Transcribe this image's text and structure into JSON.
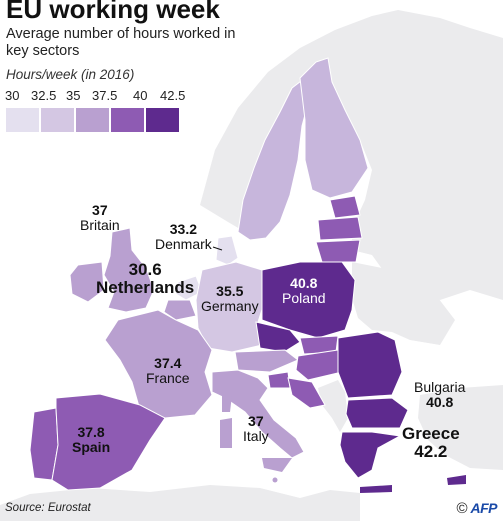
{
  "header": {
    "title": "EU working week",
    "subtitle": "Average number of hours worked in key sectors"
  },
  "legend": {
    "title": "Hours/week (in 2016)",
    "ticks": [
      "30",
      "32.5",
      "35",
      "37.5",
      "40",
      "42.5"
    ],
    "colors": [
      "#e4e0ef",
      "#d4c7e3",
      "#b9a0d0",
      "#8e5bb3",
      "#5e2a8e"
    ]
  },
  "map": {
    "sea_color": "#ffffff",
    "non_eu_color": "#ebebed"
  },
  "countries": {
    "britain": {
      "name": "Britain",
      "value": "37"
    },
    "denmark": {
      "name": "Denmark",
      "value": "33.2"
    },
    "netherlands": {
      "name": "Netherlands",
      "value": "30.6"
    },
    "germany": {
      "name": "Germany",
      "value": "35.5"
    },
    "poland": {
      "name": "Poland",
      "value": "40.8"
    },
    "france": {
      "name": "France",
      "value": "37.4"
    },
    "spain": {
      "name": "Spain",
      "value": "37.8"
    },
    "italy": {
      "name": "Italy",
      "value": "37"
    },
    "bulgaria": {
      "name": "Bulgaria",
      "value": "40.8"
    },
    "greece": {
      "name": "Greece",
      "value": "42.2"
    }
  },
  "footer": {
    "source": "Source: Eurostat",
    "copyright": "©",
    "logo": "AFP"
  }
}
